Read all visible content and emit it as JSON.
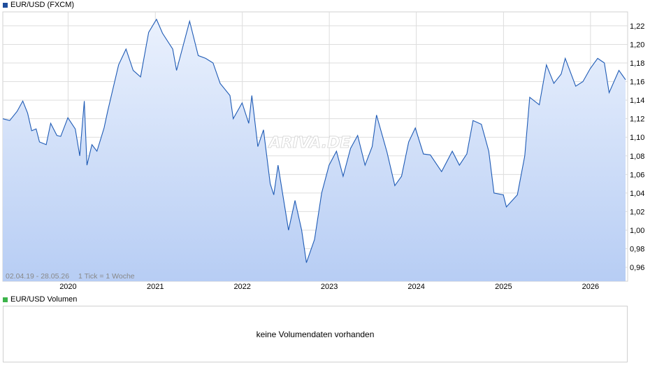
{
  "chart_data": {
    "type": "area",
    "title": "EUR/USD (FXCM)",
    "range_label": "02.04.19 - 28.05.26",
    "tick_label": "1 Tick = 1 Woche",
    "watermark": "ARIVA.DE",
    "x_years": [
      "2020",
      "2021",
      "2022",
      "2023",
      "2024",
      "2025",
      "2026"
    ],
    "ylim": [
      0.945,
      1.235
    ],
    "y_ticks": [
      "0,96",
      "0,98",
      "1,00",
      "1,02",
      "1,04",
      "1,06",
      "1,08",
      "1,10",
      "1,12",
      "1,14",
      "1,16",
      "1,18",
      "1,20",
      "1,22"
    ],
    "grid": true,
    "colors": {
      "line": "#1f5bb5",
      "fill_top": "#eaf1fd",
      "fill_bottom": "#b7cdf4",
      "legend_price": "#1f4e9c",
      "legend_volume": "#3cb44b"
    },
    "series": [
      {
        "name": "EUR/USD",
        "points": [
          [
            "2019-04-02",
            1.12
          ],
          [
            "2019-05-01",
            1.118
          ],
          [
            "2019-06-01",
            1.128
          ],
          [
            "2019-06-25",
            1.139
          ],
          [
            "2019-07-15",
            1.126
          ],
          [
            "2019-08-01",
            1.107
          ],
          [
            "2019-08-20",
            1.109
          ],
          [
            "2019-09-03",
            1.095
          ],
          [
            "2019-10-01",
            1.092
          ],
          [
            "2019-10-20",
            1.115
          ],
          [
            "2019-11-15",
            1.102
          ],
          [
            "2019-12-01",
            1.101
          ],
          [
            "2019-12-31",
            1.121
          ],
          [
            "2020-01-31",
            1.109
          ],
          [
            "2020-02-19",
            1.08
          ],
          [
            "2020-03-09",
            1.139
          ],
          [
            "2020-03-20",
            1.07
          ],
          [
            "2020-04-10",
            1.092
          ],
          [
            "2020-05-01",
            1.085
          ],
          [
            "2020-05-31",
            1.11
          ],
          [
            "2020-06-15",
            1.128
          ],
          [
            "2020-07-31",
            1.178
          ],
          [
            "2020-08-31",
            1.195
          ],
          [
            "2020-09-30",
            1.172
          ],
          [
            "2020-10-31",
            1.165
          ],
          [
            "2020-12-04",
            1.213
          ],
          [
            "2021-01-06",
            1.227
          ],
          [
            "2021-01-31",
            1.212
          ],
          [
            "2021-03-15",
            1.195
          ],
          [
            "2021-03-31",
            1.172
          ],
          [
            "2021-05-25",
            1.225
          ],
          [
            "2021-06-30",
            1.188
          ],
          [
            "2021-07-31",
            1.185
          ],
          [
            "2021-08-31",
            1.18
          ],
          [
            "2021-09-30",
            1.158
          ],
          [
            "2021-11-10",
            1.145
          ],
          [
            "2021-11-24",
            1.12
          ],
          [
            "2021-12-31",
            1.137
          ],
          [
            "2022-01-28",
            1.115
          ],
          [
            "2022-02-10",
            1.145
          ],
          [
            "2022-03-07",
            1.09
          ],
          [
            "2022-03-31",
            1.108
          ],
          [
            "2022-04-28",
            1.05
          ],
          [
            "2022-05-13",
            1.038
          ],
          [
            "2022-05-31",
            1.07
          ],
          [
            "2022-07-14",
            1.0
          ],
          [
            "2022-08-10",
            1.032
          ],
          [
            "2022-09-07",
            1.0
          ],
          [
            "2022-09-27",
            0.965
          ],
          [
            "2022-10-31",
            0.99
          ],
          [
            "2022-11-30",
            1.04
          ],
          [
            "2022-12-31",
            1.07
          ],
          [
            "2023-01-31",
            1.085
          ],
          [
            "2023-02-28",
            1.058
          ],
          [
            "2023-03-31",
            1.088
          ],
          [
            "2023-04-30",
            1.102
          ],
          [
            "2023-05-31",
            1.07
          ],
          [
            "2023-06-30",
            1.09
          ],
          [
            "2023-07-18",
            1.124
          ],
          [
            "2023-08-31",
            1.084
          ],
          [
            "2023-10-03",
            1.048
          ],
          [
            "2023-10-31",
            1.058
          ],
          [
            "2023-11-30",
            1.095
          ],
          [
            "2023-12-28",
            1.11
          ],
          [
            "2024-01-31",
            1.082
          ],
          [
            "2024-02-29",
            1.081
          ],
          [
            "2024-04-16",
            1.063
          ],
          [
            "2024-05-31",
            1.085
          ],
          [
            "2024-06-30",
            1.07
          ],
          [
            "2024-07-31",
            1.082
          ],
          [
            "2024-08-26",
            1.118
          ],
          [
            "2024-09-30",
            1.114
          ],
          [
            "2024-10-31",
            1.085
          ],
          [
            "2024-11-22",
            1.04
          ],
          [
            "2024-12-31",
            1.038
          ],
          [
            "2025-01-13",
            1.025
          ],
          [
            "2025-02-28",
            1.038
          ],
          [
            "2025-03-31",
            1.08
          ],
          [
            "2025-04-21",
            1.143
          ],
          [
            "2025-05-31",
            1.135
          ],
          [
            "2025-06-30",
            1.178
          ],
          [
            "2025-07-31",
            1.158
          ],
          [
            "2025-08-31",
            1.168
          ],
          [
            "2025-09-17",
            1.185
          ],
          [
            "2025-10-31",
            1.155
          ],
          [
            "2025-11-30",
            1.16
          ],
          [
            "2025-12-31",
            1.174
          ],
          [
            "2026-01-31",
            1.185
          ],
          [
            "2026-02-28",
            1.18
          ],
          [
            "2026-03-20",
            1.148
          ],
          [
            "2026-04-30",
            1.172
          ],
          [
            "2026-05-28",
            1.162
          ]
        ]
      }
    ]
  },
  "legend": {
    "price_label": "EUR/USD (FXCM)",
    "volume_label": "EUR/USD Volumen"
  },
  "volume": {
    "empty_message": "keine Volumendaten vorhanden"
  }
}
